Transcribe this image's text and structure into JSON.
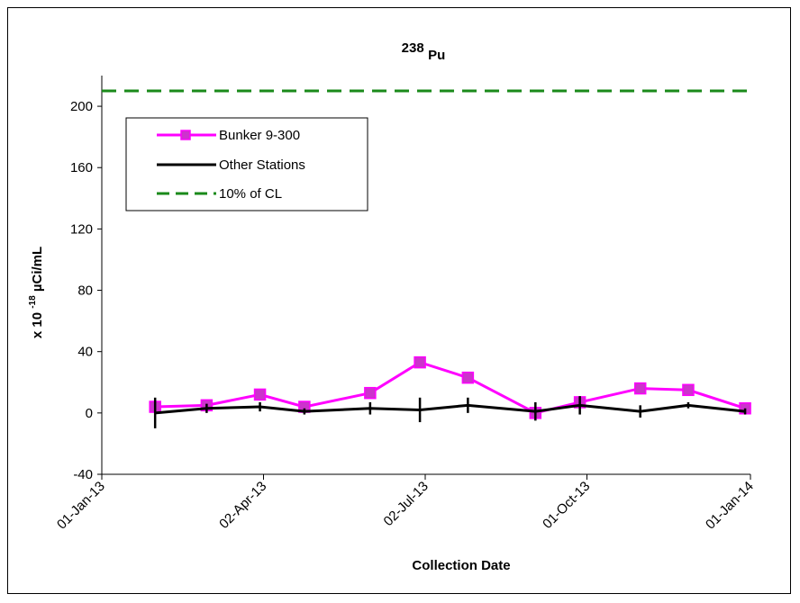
{
  "chart_data": {
    "type": "line",
    "title_prefix": "238",
    "title_main": "Pu",
    "xlabel": "Collection Date",
    "ylabel_prefix": "x 10",
    "ylabel_exponent": "-18",
    "ylabel_suffix": " µCi/mL",
    "ylim": [
      -40,
      220
    ],
    "yticks": [
      -40,
      0,
      40,
      80,
      120,
      160,
      200
    ],
    "xlim": [
      "2013-01-01",
      "2014-01-01"
    ],
    "xticks": [
      {
        "date": "2013-01-01",
        "label": "01-Jan-13"
      },
      {
        "date": "2013-04-02",
        "label": "02-Apr-13"
      },
      {
        "date": "2013-07-02",
        "label": "02-Jul-13"
      },
      {
        "date": "2013-10-01",
        "label": "01-Oct-13"
      },
      {
        "date": "2014-01-01",
        "label": "01-Jan-14"
      }
    ],
    "legend_position": "top-left",
    "series": [
      {
        "name": "Bunker 9-300",
        "color": "#FF00FF",
        "marker_fill": "#CC33CC",
        "x": [
          "2013-01-31",
          "2013-03-01",
          "2013-03-31",
          "2013-04-25",
          "2013-06-01",
          "2013-06-29",
          "2013-07-26",
          "2013-09-02",
          "2013-09-27",
          "2013-10-31",
          "2013-11-27",
          "2013-12-29"
        ],
        "y": [
          4,
          5,
          12,
          4,
          13,
          33,
          23,
          0,
          7,
          16,
          15,
          3
        ]
      },
      {
        "name": "Other Stations",
        "color": "#000000",
        "x": [
          "2013-01-31",
          "2013-03-01",
          "2013-03-31",
          "2013-04-25",
          "2013-06-01",
          "2013-06-29",
          "2013-07-26",
          "2013-09-02",
          "2013-09-27",
          "2013-10-31",
          "2013-11-27",
          "2013-12-29"
        ],
        "y": [
          0,
          3,
          4,
          1,
          3,
          2,
          5,
          1,
          5,
          1,
          5,
          1
        ],
        "err": [
          10,
          3,
          3,
          2,
          4,
          8,
          5,
          6,
          6,
          4,
          2,
          2
        ]
      },
      {
        "name": "10% of CL",
        "color": "#1A8A1A",
        "style": "dashed",
        "y": 210
      }
    ]
  }
}
